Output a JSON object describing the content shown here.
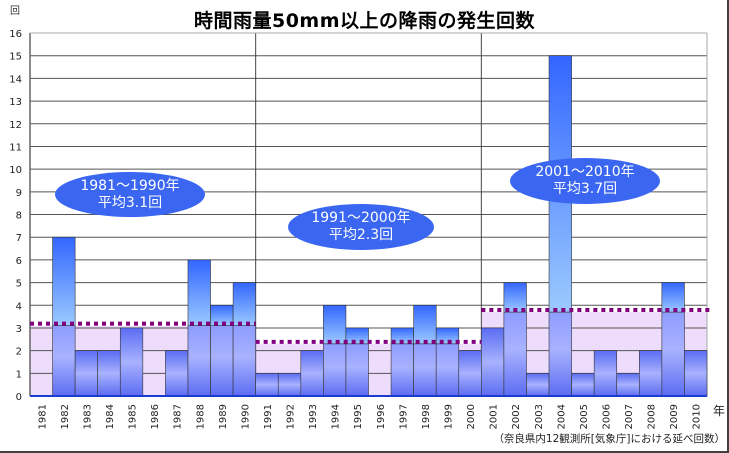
{
  "chart_data": {
    "type": "bar",
    "title": "時間雨量50mm以上の降雨の発生回数",
    "ylabel": "回",
    "xlabel": "年",
    "ylim": [
      0,
      16
    ],
    "yticks": [
      0,
      1,
      2,
      3,
      4,
      5,
      6,
      7,
      8,
      9,
      10,
      11,
      12,
      13,
      14,
      15,
      16
    ],
    "grid": true,
    "categories": [
      "1981",
      "1982",
      "1983",
      "1984",
      "1985",
      "1986",
      "1987",
      "1988",
      "1989",
      "1990",
      "1991",
      "1992",
      "1993",
      "1994",
      "1995",
      "1996",
      "1997",
      "1998",
      "1999",
      "2000",
      "2001",
      "2002",
      "2003",
      "2004",
      "2005",
      "2006",
      "2007",
      "2008",
      "2009",
      "2010"
    ],
    "values": [
      0,
      7,
      2,
      2,
      3,
      0,
      2,
      6,
      4,
      5,
      1,
      1,
      2,
      4,
      3,
      0,
      3,
      4,
      3,
      2,
      3,
      5,
      1,
      15,
      1,
      2,
      1,
      2,
      5,
      2
    ],
    "decades": [
      {
        "label": "1981～1990年",
        "average_label": "平均3.1回",
        "average": 3.1,
        "start": 0,
        "end": 10
      },
      {
        "label": "1991～2000年",
        "average_label": "平均2.3回",
        "average": 2.3,
        "start": 10,
        "end": 20
      },
      {
        "label": "2001～2010年",
        "average_label": "平均3.7回",
        "average": 3.7,
        "start": 20,
        "end": 30
      }
    ],
    "note": "（奈良県内12観測所[気象庁]における延べ回数）",
    "colors": {
      "bar_top": "#3366ff",
      "bar_mid": "#9ccaff",
      "bar_low": "#a8b2ff",
      "bar_base": "#5c6cf2",
      "avg_band": "#eedcfc",
      "avg_line": "#800080",
      "bubble": "#3a66f2"
    }
  }
}
